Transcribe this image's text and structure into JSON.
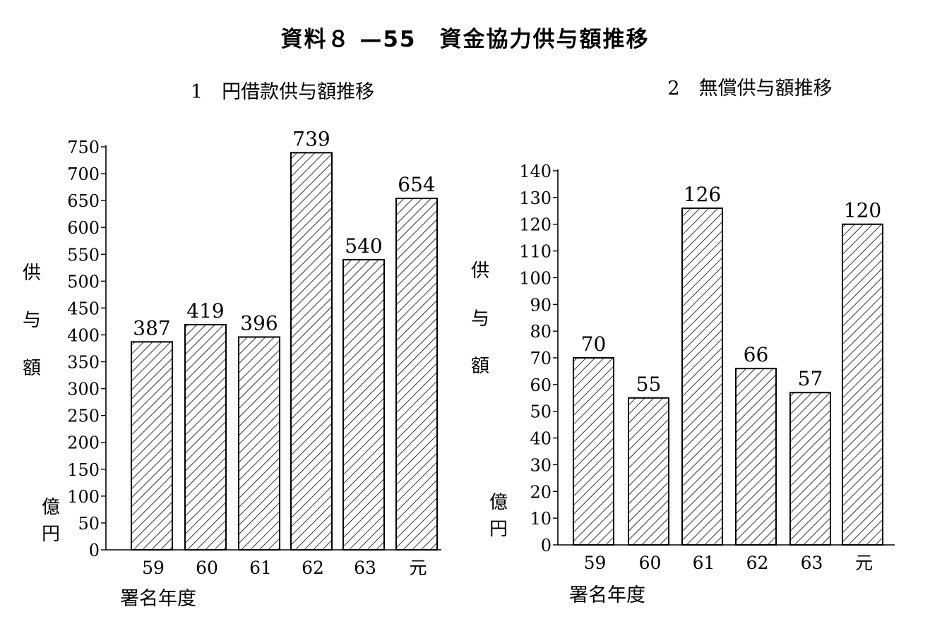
{
  "title": "資料８ —55　資金協力供与額推移",
  "chart_data": [
    {
      "type": "bar",
      "title": "1　円借款供与額推移",
      "categories": [
        "59",
        "60",
        "61",
        "62",
        "63",
        "元"
      ],
      "values": [
        387,
        419,
        396,
        739,
        540,
        654
      ],
      "ylim": [
        0,
        750
      ],
      "yticks": [
        0,
        50,
        100,
        150,
        200,
        250,
        300,
        350,
        400,
        450,
        500,
        550,
        600,
        650,
        700,
        750
      ],
      "ylabel": "供与額",
      "yunit": "億円",
      "xlabel": "署名年度",
      "grid": false,
      "bar_fill": "diagonal-hatch"
    },
    {
      "type": "bar",
      "title": "2　無償供与額推移",
      "categories": [
        "59",
        "60",
        "61",
        "62",
        "63",
        "元"
      ],
      "values": [
        70,
        55,
        126,
        66,
        57,
        120
      ],
      "ylim": [
        0,
        140
      ],
      "yticks": [
        0,
        10,
        20,
        30,
        40,
        50,
        60,
        70,
        80,
        90,
        100,
        110,
        120,
        130,
        140
      ],
      "ylabel": "供与額",
      "yunit": "億円",
      "xlabel": "署名年度",
      "grid": false,
      "bar_fill": "diagonal-hatch"
    }
  ]
}
